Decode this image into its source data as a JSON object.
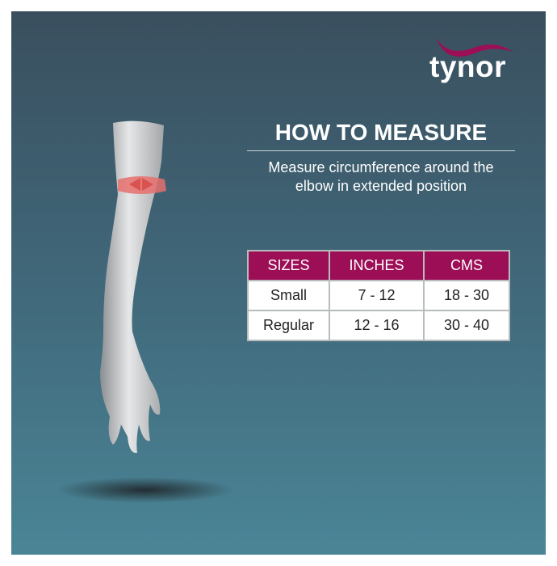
{
  "brand": {
    "name": "tynor",
    "swoosh_color": "#9c0f57"
  },
  "title": "HOW TO MEASURE",
  "subtitle_lines": [
    "Measure circumference around the",
    "elbow in extended position"
  ],
  "size_table": {
    "headers": [
      "SIZES",
      "INCHES",
      "CMS"
    ],
    "rows": [
      [
        "Small",
        "7 - 12",
        "18 - 30"
      ],
      [
        "Regular",
        "12 - 16",
        "30 - 40"
      ]
    ]
  },
  "colors": {
    "header": "#9c0f57",
    "measure_arrow": "#e8706f"
  }
}
